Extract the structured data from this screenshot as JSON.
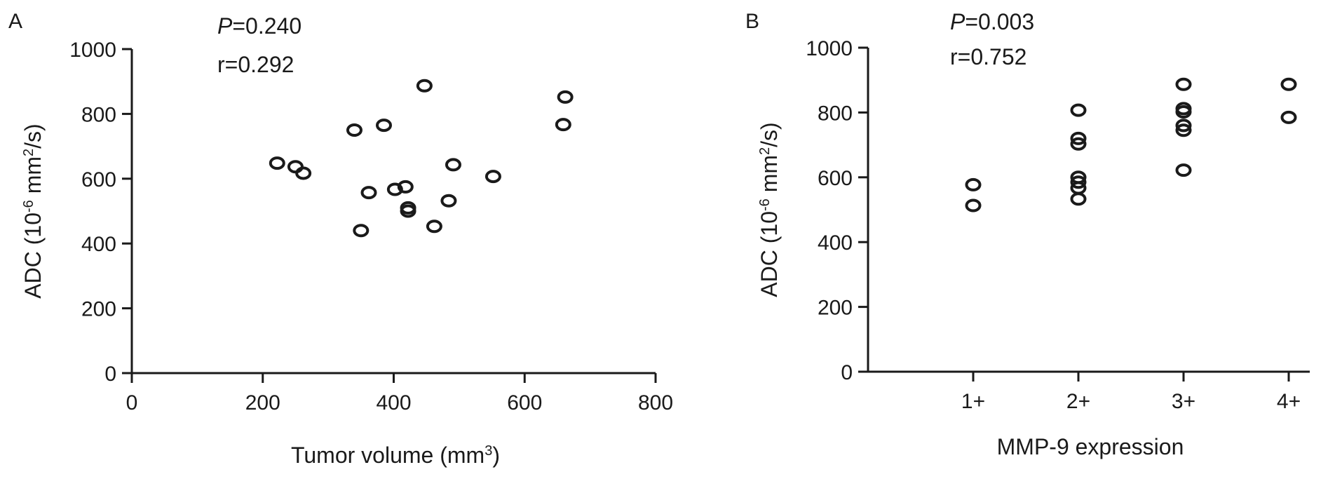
{
  "chart_data": [
    {
      "type": "scatter",
      "panel_label": "A",
      "annotation": {
        "p_symbol": "P",
        "p_value": "=0.240",
        "r_text": "r=0.292"
      },
      "xlabel": {
        "text": "Tumor volume (mm",
        "sup": "3",
        "tail": ")"
      },
      "ylabel": {
        "text": "ADC (10",
        "sup1": "-6",
        "mid": " mm",
        "sup2": "2",
        "tail": "/s)"
      },
      "xlim": [
        0,
        800
      ],
      "ylim": [
        0,
        1000
      ],
      "xticks": [
        0,
        200,
        400,
        600,
        800
      ],
      "yticks": [
        0,
        200,
        400,
        600,
        800,
        1000
      ],
      "x_tick_labels": [
        "0",
        "200",
        "400",
        "600",
        "800"
      ],
      "y_tick_labels": [
        "0",
        "200",
        "400",
        "600",
        "800",
        "1000"
      ],
      "points": [
        {
          "x": 222,
          "y": 648
        },
        {
          "x": 250,
          "y": 637
        },
        {
          "x": 262,
          "y": 617
        },
        {
          "x": 340,
          "y": 750
        },
        {
          "x": 385,
          "y": 765
        },
        {
          "x": 447,
          "y": 887
        },
        {
          "x": 362,
          "y": 557
        },
        {
          "x": 350,
          "y": 440
        },
        {
          "x": 402,
          "y": 567
        },
        {
          "x": 418,
          "y": 575
        },
        {
          "x": 422,
          "y": 510
        },
        {
          "x": 422,
          "y": 500
        },
        {
          "x": 462,
          "y": 453
        },
        {
          "x": 484,
          "y": 532
        },
        {
          "x": 491,
          "y": 643
        },
        {
          "x": 552,
          "y": 607
        },
        {
          "x": 659,
          "y": 767
        },
        {
          "x": 662,
          "y": 852
        }
      ],
      "grid": false
    },
    {
      "type": "scatter",
      "panel_label": "B",
      "annotation": {
        "p_symbol": "P",
        "p_value": "=0.003",
        "r_text": "r=0.752"
      },
      "xlabel": {
        "text": "MMP-9 expression"
      },
      "ylabel": {
        "text": "ADC (10",
        "sup1": "-6",
        "mid": " mm",
        "sup2": "2",
        "tail": "/s)"
      },
      "categories": [
        "1+",
        "2+",
        "3+",
        "4+"
      ],
      "ylim": [
        0,
        1000
      ],
      "yticks": [
        0,
        200,
        400,
        600,
        800,
        1000
      ],
      "y_tick_labels": [
        "0",
        "200",
        "400",
        "600",
        "800",
        "1000"
      ],
      "points": [
        {
          "category": "1+",
          "y": 577
        },
        {
          "category": "1+",
          "y": 513
        },
        {
          "category": "2+",
          "y": 807
        },
        {
          "category": "2+",
          "y": 720
        },
        {
          "category": "2+",
          "y": 703
        },
        {
          "category": "2+",
          "y": 600
        },
        {
          "category": "2+",
          "y": 585
        },
        {
          "category": "2+",
          "y": 567
        },
        {
          "category": "2+",
          "y": 533
        },
        {
          "category": "3+",
          "y": 887
        },
        {
          "category": "3+",
          "y": 812
        },
        {
          "category": "3+",
          "y": 802
        },
        {
          "category": "3+",
          "y": 760
        },
        {
          "category": "3+",
          "y": 745
        },
        {
          "category": "3+",
          "y": 622
        },
        {
          "category": "4+",
          "y": 887
        },
        {
          "category": "4+",
          "y": 785
        }
      ],
      "grid": false
    }
  ]
}
